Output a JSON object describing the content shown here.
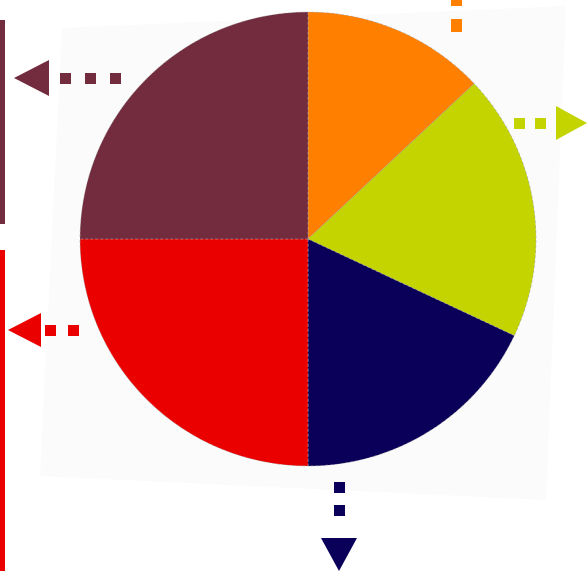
{
  "chart_data": {
    "type": "pie",
    "title": "",
    "slices": [
      {
        "value": 13,
        "color": "#ff7f00"
      },
      {
        "value": 19,
        "color": "#c3d400"
      },
      {
        "value": 18,
        "color": "#0b0059"
      },
      {
        "value": 25,
        "color": "#eb0000"
      },
      {
        "value": 25,
        "color": "#732b3e"
      }
    ],
    "legend": "none",
    "background_color": "#fbfbfb",
    "separator_color": "#a9a9a9"
  }
}
